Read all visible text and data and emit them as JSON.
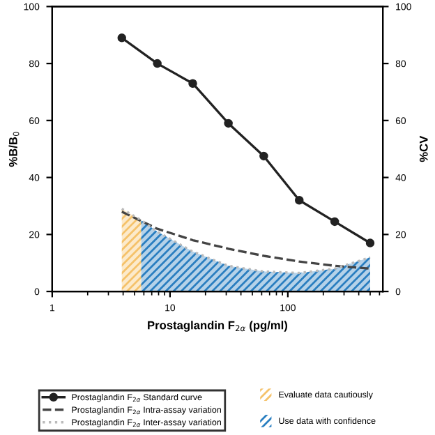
{
  "chart_data": {
    "type": "line",
    "xlabel": "Prostaglandin F$_{2α}$ (pg/ml)",
    "ylabel": "%B/B$_{0}$",
    "y2label": "%CV",
    "log": "x",
    "xlim": [
      1,
      640
    ],
    "xticks": [
      1,
      10,
      100
    ],
    "ylim": [
      0,
      100
    ],
    "yticks": [
      0,
      20,
      40,
      60,
      80,
      100
    ],
    "y2lim": [
      0,
      100
    ],
    "y2ticks": [
      0,
      20,
      40,
      60,
      80,
      100
    ],
    "grid": false,
    "legend": "bottom",
    "series": [
      {
        "name": "Evaluate data cautiously",
        "type": "area",
        "color": "#f5c26b",
        "x": [
          3.9,
          5.7
        ],
        "values": [
          29,
          25
        ]
      },
      {
        "name": "Use data with confidence",
        "type": "area",
        "color": "#2a7fc1",
        "x": [
          5.7,
          7.8,
          15.6,
          31.3,
          62.5,
          125,
          250,
          500
        ],
        "values": [
          25,
          21,
          14,
          9,
          7,
          6.5,
          8,
          12
        ]
      },
      {
        "name": "Prostaglandin F$_{2α}$ Standard curve",
        "color": "#222222",
        "marker": "circle",
        "line_style": "solid",
        "x": [
          3.9,
          7.8,
          15.6,
          31.3,
          62.5,
          125,
          250,
          500
        ],
        "values": [
          89,
          80,
          73,
          59,
          47.5,
          32,
          24.5,
          17
        ]
      },
      {
        "name": "Prostaglandin F$_{2α}$ Intra-assay variation",
        "color": "#444444",
        "marker": "none",
        "line_style": "dashed",
        "x": [
          3.9,
          7.8,
          15.6,
          31.3,
          62.5,
          125,
          250,
          500
        ],
        "values": [
          28,
          22,
          18,
          15,
          12.5,
          10.5,
          9,
          8
        ]
      },
      {
        "name": "Prostaglandin F$_{2α}$ Inter-assay variation",
        "color": "#bbbbbb",
        "marker": "none",
        "line_style": "dotted",
        "x": [
          3.9,
          5.7,
          7.8,
          15.6,
          31.3,
          62.5,
          125,
          250,
          500
        ],
        "values": [
          29,
          25,
          21,
          14,
          9,
          7,
          6.5,
          8,
          12
        ]
      }
    ]
  }
}
